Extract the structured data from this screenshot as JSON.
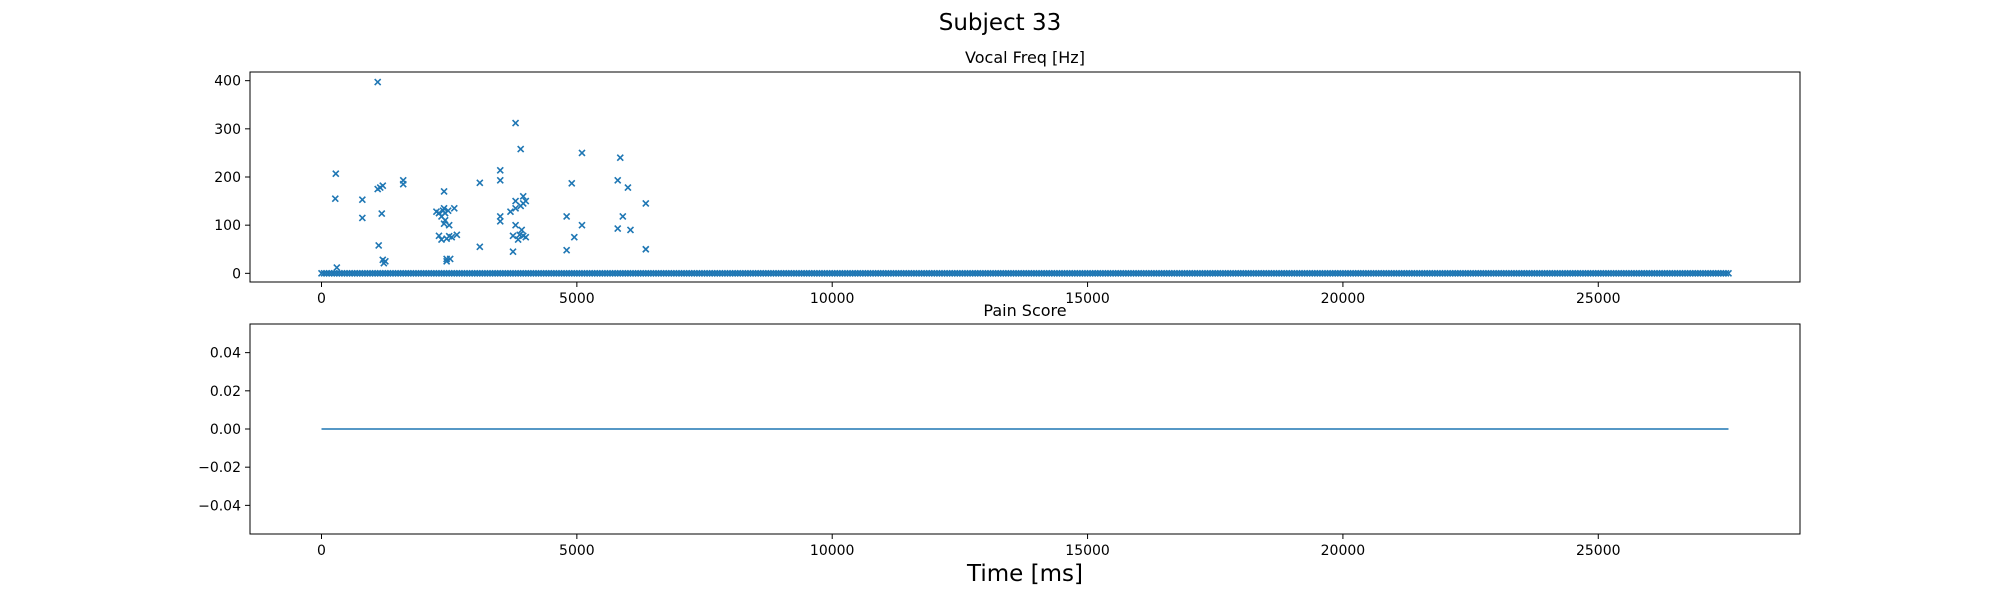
{
  "figure": {
    "suptitle": "Subject 33",
    "xlabel": "Time [ms]"
  },
  "colors": {
    "series": "#1f77b4"
  },
  "chart_data": [
    {
      "type": "scatter",
      "title": "Vocal Freq [Hz]",
      "xlabel": "",
      "ylabel": "",
      "xlim": [
        -1400,
        28950
      ],
      "ylim": [
        -18,
        418
      ],
      "xticks": [
        0,
        5000,
        10000,
        15000,
        20000,
        25000
      ],
      "yticks": [
        0,
        100,
        200,
        300,
        400
      ],
      "grid": false,
      "marker": "x",
      "baseline": {
        "x_start": 0,
        "x_end": 27550,
        "step": 50,
        "y": 0
      },
      "points": [
        [
          280,
          207
        ],
        [
          270,
          155
        ],
        [
          300,
          12
        ],
        [
          800,
          153
        ],
        [
          800,
          115
        ],
        [
          1100,
          397
        ],
        [
          1100,
          175
        ],
        [
          1120,
          58
        ],
        [
          1150,
          178
        ],
        [
          1180,
          124
        ],
        [
          1200,
          182
        ],
        [
          1200,
          28
        ],
        [
          1220,
          21
        ],
        [
          1250,
          25
        ],
        [
          1600,
          193
        ],
        [
          1600,
          185
        ],
        [
          2250,
          128
        ],
        [
          2300,
          125
        ],
        [
          2300,
          78
        ],
        [
          2350,
          70
        ],
        [
          2350,
          118
        ],
        [
          2380,
          130
        ],
        [
          2400,
          170
        ],
        [
          2400,
          135
        ],
        [
          2400,
          103
        ],
        [
          2420,
          125
        ],
        [
          2420,
          110
        ],
        [
          2450,
          72
        ],
        [
          2450,
          30
        ],
        [
          2450,
          25
        ],
        [
          2480,
          130
        ],
        [
          2500,
          100
        ],
        [
          2500,
          77
        ],
        [
          2520,
          30
        ],
        [
          2550,
          75
        ],
        [
          2600,
          135
        ],
        [
          2650,
          80
        ],
        [
          3100,
          188
        ],
        [
          3100,
          55
        ],
        [
          3500,
          214
        ],
        [
          3500,
          193
        ],
        [
          3500,
          118
        ],
        [
          3500,
          108
        ],
        [
          3700,
          128
        ],
        [
          3750,
          45
        ],
        [
          3750,
          78
        ],
        [
          3800,
          312
        ],
        [
          3800,
          150
        ],
        [
          3800,
          100
        ],
        [
          3800,
          135
        ],
        [
          3850,
          70
        ],
        [
          3880,
          80
        ],
        [
          3900,
          140
        ],
        [
          3900,
          258
        ],
        [
          3920,
          90
        ],
        [
          3950,
          160
        ],
        [
          3950,
          145
        ],
        [
          3950,
          78
        ],
        [
          4000,
          150
        ],
        [
          4000,
          75
        ],
        [
          4800,
          118
        ],
        [
          4800,
          48
        ],
        [
          4900,
          187
        ],
        [
          4950,
          75
        ],
        [
          5100,
          250
        ],
        [
          5100,
          100
        ],
        [
          5800,
          193
        ],
        [
          5800,
          93
        ],
        [
          5850,
          240
        ],
        [
          5900,
          118
        ],
        [
          6000,
          178
        ],
        [
          6050,
          90
        ],
        [
          6350,
          50
        ],
        [
          6350,
          145
        ]
      ]
    },
    {
      "type": "line",
      "title": "Pain Score",
      "xlabel": "",
      "ylabel": "",
      "xlim": [
        -1400,
        28950
      ],
      "ylim": [
        -0.055,
        0.055
      ],
      "xticks": [
        0,
        5000,
        10000,
        15000,
        20000,
        25000
      ],
      "yticks": [
        -0.04,
        -0.02,
        0.0,
        0.02,
        0.04
      ],
      "ytick_labels": [
        "−0.04",
        "−0.02",
        "0.00",
        "0.02",
        "0.04"
      ],
      "grid": false,
      "x": [
        0,
        27550
      ],
      "y": [
        0,
        0
      ]
    }
  ]
}
